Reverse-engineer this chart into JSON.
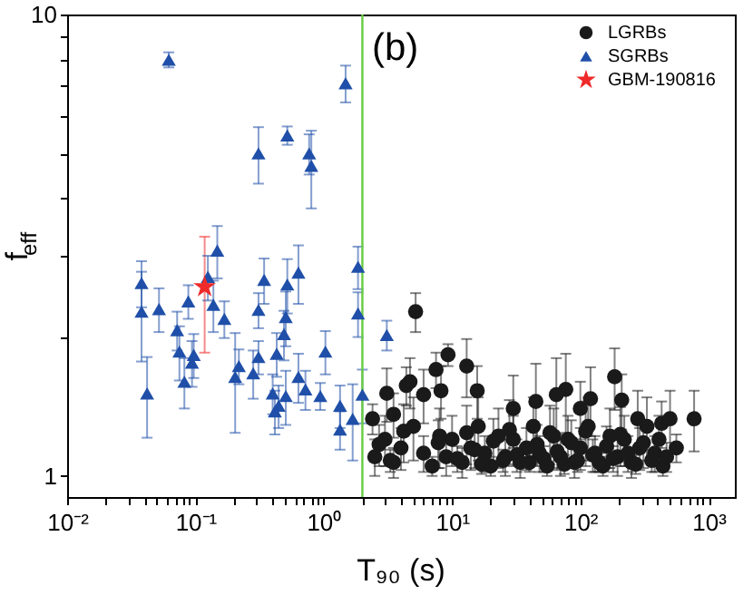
{
  "chart_data": {
    "type": "scatter",
    "xlabel": "T₉₀ (s)",
    "ylabel": "f$_{eff}$",
    "annotations": [
      "(b)"
    ],
    "log": "xy",
    "grid": false,
    "legend": "top right",
    "xlim": [
      0.01,
      1600
    ],
    "ylim": [
      0.9,
      10
    ],
    "xticks": [
      {
        "value": 0.01,
        "label": "10⁻²"
      },
      {
        "value": 0.02,
        "label": null
      },
      {
        "value": 0.03,
        "label": null
      },
      {
        "value": 0.04,
        "label": null
      },
      {
        "value": 0.05,
        "label": null
      },
      {
        "value": 0.06,
        "label": null
      },
      {
        "value": 0.07,
        "label": null
      },
      {
        "value": 0.08,
        "label": null
      },
      {
        "value": 0.09,
        "label": null
      },
      {
        "value": 0.1,
        "label": "10⁻¹"
      },
      {
        "value": 0.2,
        "label": null
      },
      {
        "value": 0.3,
        "label": null
      },
      {
        "value": 0.4,
        "label": null
      },
      {
        "value": 0.5,
        "label": null
      },
      {
        "value": 0.6,
        "label": null
      },
      {
        "value": 0.7,
        "label": null
      },
      {
        "value": 0.8,
        "label": null
      },
      {
        "value": 0.9,
        "label": null
      },
      {
        "value": 1,
        "label": "10⁰"
      },
      {
        "value": 2,
        "label": null
      },
      {
        "value": 3,
        "label": null
      },
      {
        "value": 4,
        "label": null
      },
      {
        "value": 5,
        "label": null
      },
      {
        "value": 6,
        "label": null
      },
      {
        "value": 7,
        "label": null
      },
      {
        "value": 8,
        "label": null
      },
      {
        "value": 9,
        "label": null
      },
      {
        "value": 10,
        "label": "10¹"
      },
      {
        "value": 20,
        "label": null
      },
      {
        "value": 30,
        "label": null
      },
      {
        "value": 40,
        "label": null
      },
      {
        "value": 50,
        "label": null
      },
      {
        "value": 60,
        "label": null
      },
      {
        "value": 70,
        "label": null
      },
      {
        "value": 80,
        "label": null
      },
      {
        "value": 90,
        "label": null
      },
      {
        "value": 100,
        "label": "10²"
      },
      {
        "value": 200,
        "label": null
      },
      {
        "value": 300,
        "label": null
      },
      {
        "value": 400,
        "label": null
      },
      {
        "value": 500,
        "label": null
      },
      {
        "value": 600,
        "label": null
      },
      {
        "value": 700,
        "label": null
      },
      {
        "value": 800,
        "label": null
      },
      {
        "value": 900,
        "label": null
      },
      {
        "value": 1000,
        "label": "10³"
      }
    ],
    "yticks": [
      1,
      {
        "value": 2,
        "label": null
      },
      {
        "value": 3,
        "label": null
      },
      {
        "value": 4,
        "label": null
      },
      {
        "value": 5,
        "label": null
      },
      {
        "value": 6,
        "label": null
      },
      {
        "value": 7,
        "label": null
      },
      {
        "value": 8,
        "label": null
      },
      {
        "value": 9,
        "label": null
      },
      10
    ],
    "ref_lines": [
      {
        "axis": "x",
        "value": 2,
        "color": "#66cc44",
        "line_style": "solid"
      }
    ],
    "series": [
      {
        "name": "LGRBs",
        "marker": "circle",
        "color": "#1a1a1a",
        "x": [
          5.2,
          9.3,
          7.5,
          13,
          3.1,
          4.4,
          4.7,
          8.2,
          15.7,
          185,
          210,
          77,
          65,
          120,
          770,
          430,
          500,
          560,
          280,
          2.4,
          3.5,
          6,
          45,
          30,
          100,
          2.5,
          3,
          3.5,
          4,
          5,
          6,
          7,
          8,
          9,
          10,
          12,
          14,
          16,
          18,
          20,
          23,
          26,
          30,
          34,
          38,
          43,
          48,
          55,
          62,
          70,
          80,
          90,
          100,
          115,
          130,
          150,
          170,
          195,
          220,
          250,
          290,
          330,
          380,
          440,
          2.7,
          3.3,
          4.2,
          7.8,
          11,
          13,
          15,
          17,
          21,
          25,
          28,
          32,
          40,
          46,
          52,
          58,
          66,
          75,
          85,
          95,
          110,
          125,
          140,
          160,
          180,
          205,
          235,
          270,
          310,
          360,
          410,
          470
        ],
        "values": [
          2.27,
          1.83,
          1.7,
          1.73,
          1.51,
          1.57,
          1.6,
          1.53,
          1.53,
          1.64,
          1.46,
          1.54,
          1.5,
          1.47,
          1.33,
          1.3,
          1.33,
          1.15,
          1.33,
          1.33,
          1.36,
          1.5,
          1.45,
          1.4,
          1.4,
          1.1,
          1.2,
          1.07,
          1.15,
          1.28,
          1.12,
          1.05,
          1.22,
          1.1,
          1.2,
          1.07,
          1.15,
          1.28,
          1.12,
          1.05,
          1.22,
          1.1,
          1.2,
          1.07,
          1.15,
          1.28,
          1.12,
          1.05,
          1.22,
          1.1,
          1.2,
          1.07,
          1.15,
          1.28,
          1.12,
          1.05,
          1.22,
          1.1,
          1.2,
          1.07,
          1.15,
          1.28,
          1.12,
          1.05,
          1.17,
          1.08,
          1.25,
          1.18,
          1.09,
          1.24,
          1.14,
          1.06,
          1.19,
          1.08,
          1.26,
          1.11,
          1.07,
          1.17,
          1.09,
          1.24,
          1.13,
          1.06,
          1.18,
          1.08,
          1.25,
          1.11,
          1.07,
          1.16,
          1.09,
          1.23,
          1.12,
          1.06,
          1.18,
          1.08,
          1.2,
          1.1
        ],
        "errors": [
          0.22,
          0.1,
          0.15,
          0.25,
          0.2,
          0.15,
          0.2,
          0.2,
          0.2,
          0.25,
          0.2,
          0.3,
          0.3,
          0.25,
          0.2,
          0.15,
          0.2,
          0.08,
          0.2,
          0.1,
          0.15,
          0.2,
          0.3,
          0.25,
          0.2,
          0.1,
          0.15,
          0.08,
          0.12,
          0.2,
          0.1,
          0.05,
          0.18,
          0.1,
          0.15,
          0.08,
          0.12,
          0.2,
          0.1,
          0.05,
          0.18,
          0.1,
          0.15,
          0.08,
          0.12,
          0.2,
          0.1,
          0.05,
          0.18,
          0.1,
          0.15,
          0.08,
          0.12,
          0.2,
          0.1,
          0.05,
          0.18,
          0.1,
          0.15,
          0.08,
          0.12,
          0.2,
          0.1,
          0.05,
          0.12,
          0.06,
          0.18,
          0.14,
          0.07,
          0.18,
          0.1,
          0.05,
          0.14,
          0.06,
          0.2,
          0.09,
          0.05,
          0.12,
          0.07,
          0.18,
          0.1,
          0.05,
          0.14,
          0.06,
          0.2,
          0.09,
          0.05,
          0.12,
          0.07,
          0.18,
          0.1,
          0.05,
          0.14,
          0.06,
          0.15,
          0.08
        ]
      },
      {
        "name": "SGRBs",
        "marker": "triangle",
        "color": "#1f4fa8",
        "x": [
          0.062,
          1.48,
          0.31,
          0.52,
          0.77,
          0.8,
          0.148,
          0.125,
          0.038,
          0.343,
          0.52,
          0.635,
          1.85,
          0.038,
          0.052,
          0.042,
          0.072,
          0.088,
          0.075,
          0.097,
          0.094,
          0.082,
          0.138,
          0.168,
          0.218,
          0.204,
          0.282,
          0.31,
          0.43,
          0.31,
          0.506,
          0.49,
          0.4,
          0.445,
          0.416,
          0.506,
          0.635,
          0.72,
          0.94,
          1.03,
          1.34,
          1.34,
          1.68,
          1.85,
          2.0,
          3.1
        ],
        "values": [
          7.98,
          7.1,
          5.0,
          5.47,
          5.0,
          4.7,
          3.08,
          2.7,
          2.62,
          2.66,
          2.6,
          2.76,
          2.84,
          2.27,
          2.3,
          1.51,
          2.07,
          2.39,
          1.86,
          1.83,
          1.76,
          1.6,
          2.35,
          2.19,
          1.73,
          1.64,
          1.67,
          2.29,
          1.84,
          1.81,
          2.21,
          2.03,
          1.51,
          1.42,
          1.38,
          1.49,
          1.64,
          1.54,
          1.49,
          1.86,
          1.42,
          1.26,
          1.33,
          2.25,
          1.5,
          2.02
        ],
        "errors": [
          0.3,
          0.65,
          0.7,
          0.25,
          0.5,
          0.9,
          0.4,
          0.3,
          0.3,
          0.3,
          0.35,
          0.4,
          0.3,
          0.5,
          0.25,
          0.3,
          0.2,
          0.2,
          0.25,
          0.2,
          0.2,
          0.2,
          0.3,
          0.2,
          0.15,
          0.4,
          0.2,
          0.2,
          0.2,
          0.15,
          0.3,
          0.25,
          0.15,
          0.15,
          0.15,
          0.2,
          0.2,
          0.15,
          0.1,
          0.2,
          0.15,
          0.12,
          0.25,
          0.25,
          0.2,
          0.15
        ]
      },
      {
        "name": "GBM-190816",
        "marker": "star",
        "color": "#ee2a2a",
        "x": [
          0.118
        ],
        "values": [
          2.57
        ],
        "errors": [
          [
            1.85,
            3.3
          ]
        ]
      }
    ]
  }
}
